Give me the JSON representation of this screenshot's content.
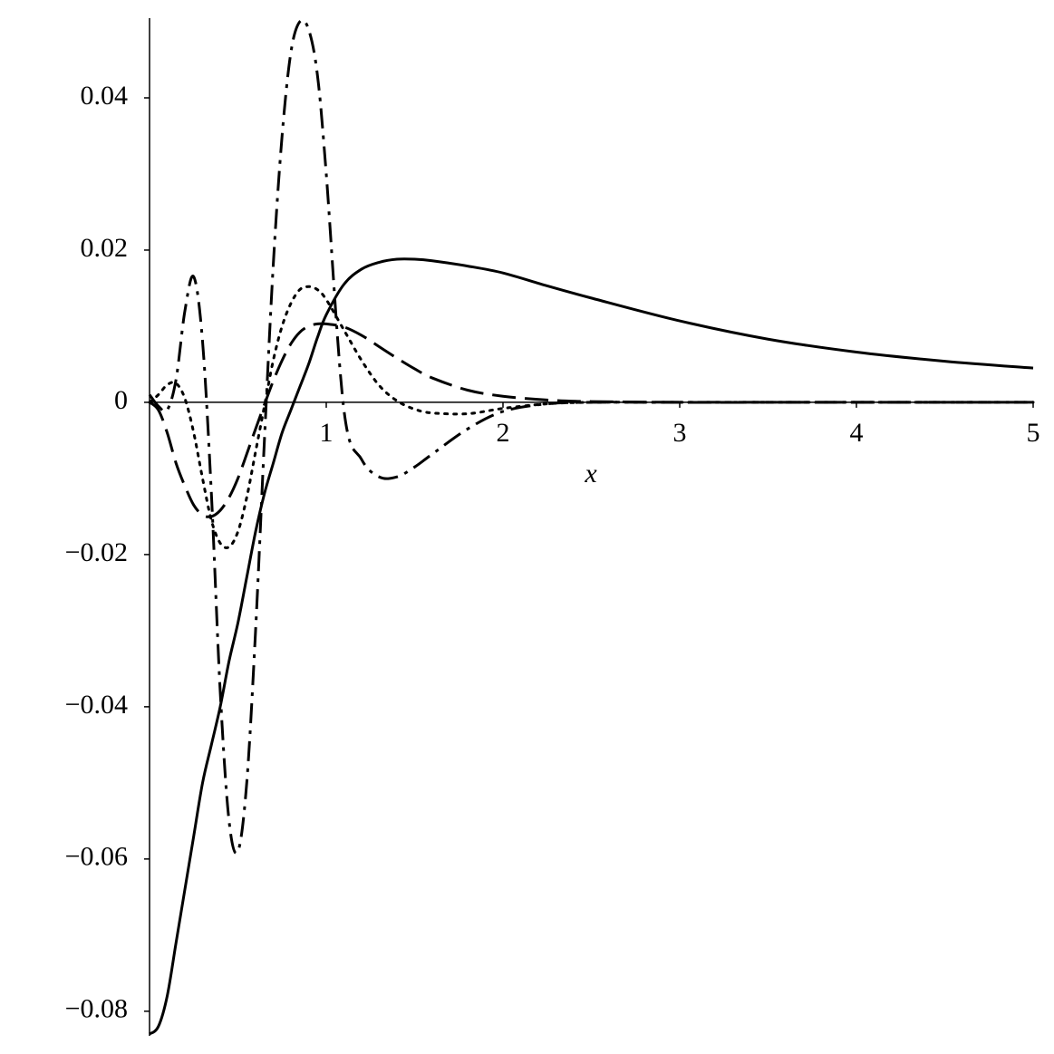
{
  "chart_data": {
    "type": "line",
    "x_label": "x",
    "x": [
      0,
      0.05,
      0.1,
      0.15,
      0.2,
      0.25,
      0.3,
      0.35,
      0.4,
      0.45,
      0.5,
      0.55,
      0.6,
      0.65,
      0.7,
      0.75,
      0.8,
      0.85,
      0.9,
      0.95,
      1.0,
      1.1,
      1.2,
      1.3,
      1.4,
      1.5,
      1.6,
      1.8,
      2.0,
      2.25,
      2.5,
      3,
      3.5,
      4,
      4.5,
      5
    ],
    "series": [
      {
        "color": "#000000",
        "dash": "solid",
        "values": [
          -0.083,
          -0.082,
          -0.078,
          -0.071,
          -0.064,
          -0.057,
          -0.05,
          -0.045,
          -0.04,
          -0.034,
          -0.029,
          -0.023,
          -0.017,
          -0.012,
          -0.008,
          -0.004,
          -0.001,
          0.002,
          0.005,
          0.0085,
          0.0115,
          0.0155,
          0.0175,
          0.0184,
          0.0188,
          0.0188,
          0.0186,
          0.0179,
          0.017,
          0.0153,
          0.0137,
          0.0107,
          0.0083,
          0.0066,
          0.0054,
          0.0045
        ]
      },
      {
        "color": "#000000",
        "dash": "dash",
        "values": [
          0,
          -0.001,
          -0.004,
          -0.008,
          -0.011,
          -0.0135,
          -0.0148,
          -0.015,
          -0.0142,
          -0.0125,
          -0.01,
          -0.0068,
          -0.0035,
          -0.0003,
          0.0028,
          0.0055,
          0.0077,
          0.0092,
          0.01,
          0.0103,
          0.0103,
          0.0099,
          0.0088,
          0.0073,
          0.0058,
          0.0044,
          0.0032,
          0.0016,
          0.0008,
          0.0003,
          0.0001,
          0,
          0,
          0,
          0,
          0
        ]
      },
      {
        "color": "#000000",
        "dash": "dot",
        "values": [
          0,
          0.001,
          0.0023,
          0.0025,
          0.0005,
          -0.004,
          -0.01,
          -0.0155,
          -0.0185,
          -0.019,
          -0.017,
          -0.0125,
          -0.0065,
          -0.0005,
          0.0055,
          0.01,
          0.013,
          0.0148,
          0.0152,
          0.0148,
          0.0135,
          0.0095,
          0.0055,
          0.0022,
          0.0002,
          -0.0009,
          -0.0014,
          -0.0015,
          -0.0008,
          -0.0002,
          0,
          0,
          0,
          0,
          0,
          0
        ]
      },
      {
        "color": "#000000",
        "dash": "dashdot",
        "values": [
          0.001,
          -0.0005,
          -0.001,
          0.003,
          0.012,
          0.0165,
          0.008,
          -0.012,
          -0.038,
          -0.055,
          -0.059,
          -0.05,
          -0.03,
          -0.005,
          0.018,
          0.035,
          0.046,
          0.05,
          0.049,
          0.043,
          0.03,
          -0.001,
          -0.0075,
          -0.0098,
          -0.0098,
          -0.0085,
          -0.0068,
          -0.0035,
          -0.0012,
          -0.0002,
          0,
          0,
          0,
          0,
          0,
          0
        ]
      }
    ],
    "xlim": [
      0,
      5
    ],
    "xticks": [
      1,
      2,
      3,
      4,
      5
    ],
    "ylim": [
      -0.083,
      0.05
    ],
    "yticks": [
      0.04,
      0.02,
      0,
      {
        "value": -0.02,
        "label": "−0.02"
      },
      {
        "value": -0.04,
        "label": "−0.04"
      },
      {
        "value": -0.06,
        "label": "−0.06"
      },
      {
        "value": -0.08,
        "label": "−0.08"
      }
    ]
  }
}
